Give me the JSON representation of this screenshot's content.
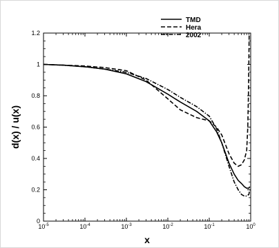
{
  "chart_data": {
    "type": "line",
    "xlabel": "x",
    "ylabel": "d(x) / u(x)",
    "xscale": "log",
    "xlim": [
      1e-05,
      1
    ],
    "ylim": [
      0,
      1.2
    ],
    "x_ticks": [
      {
        "base": "10",
        "exp": "-5",
        "value": 1e-05
      },
      {
        "base": "10",
        "exp": "-4",
        "value": 0.0001
      },
      {
        "base": "10",
        "exp": "-3",
        "value": 0.001
      },
      {
        "base": "10",
        "exp": "-2",
        "value": 0.01
      },
      {
        "base": "10",
        "exp": "-1",
        "value": 0.1
      },
      {
        "base": "10",
        "exp": "0",
        "value": 1
      }
    ],
    "y_ticks": [
      "0",
      "0.2",
      "0.4",
      "0.6",
      "0.8",
      "1",
      "1.2"
    ],
    "legend_position": "top-right",
    "series": [
      {
        "name": "TMD",
        "style": "solid",
        "x": [
          1e-05,
          3e-05,
          0.0001,
          0.0003,
          0.001,
          0.003,
          0.01,
          0.02,
          0.05,
          0.1,
          0.15,
          0.2,
          0.3,
          0.4,
          0.5,
          0.6,
          0.7,
          0.8,
          0.9,
          0.95
        ],
        "y": [
          1.0,
          0.995,
          0.985,
          0.97,
          0.94,
          0.89,
          0.81,
          0.76,
          0.7,
          0.64,
          0.57,
          0.5,
          0.37,
          0.3,
          0.26,
          0.24,
          0.22,
          0.21,
          0.21,
          0.22
        ]
      },
      {
        "name": "Hera",
        "style": "dashed",
        "x": [
          1e-05,
          3e-05,
          0.0001,
          0.0003,
          0.001,
          0.003,
          0.01,
          0.02,
          0.05,
          0.1,
          0.15,
          0.2,
          0.3,
          0.4,
          0.5,
          0.6,
          0.7,
          0.8,
          0.85,
          0.88,
          0.9,
          0.92
        ],
        "y": [
          1.0,
          0.995,
          0.99,
          0.98,
          0.96,
          0.9,
          0.78,
          0.71,
          0.66,
          0.64,
          0.6,
          0.55,
          0.43,
          0.37,
          0.35,
          0.36,
          0.39,
          0.45,
          0.6,
          0.8,
          1.0,
          1.2
        ]
      },
      {
        "name": "2002",
        "style": "dashdot",
        "x": [
          1e-05,
          3e-05,
          0.0001,
          0.0003,
          0.001,
          0.003,
          0.01,
          0.02,
          0.05,
          0.1,
          0.15,
          0.2,
          0.3,
          0.4,
          0.5,
          0.6,
          0.7,
          0.8,
          0.9,
          0.95
        ],
        "y": [
          1.0,
          0.995,
          0.985,
          0.97,
          0.95,
          0.91,
          0.84,
          0.79,
          0.73,
          0.67,
          0.59,
          0.5,
          0.35,
          0.25,
          0.2,
          0.17,
          0.16,
          0.16,
          0.17,
          0.2
        ]
      }
    ]
  }
}
